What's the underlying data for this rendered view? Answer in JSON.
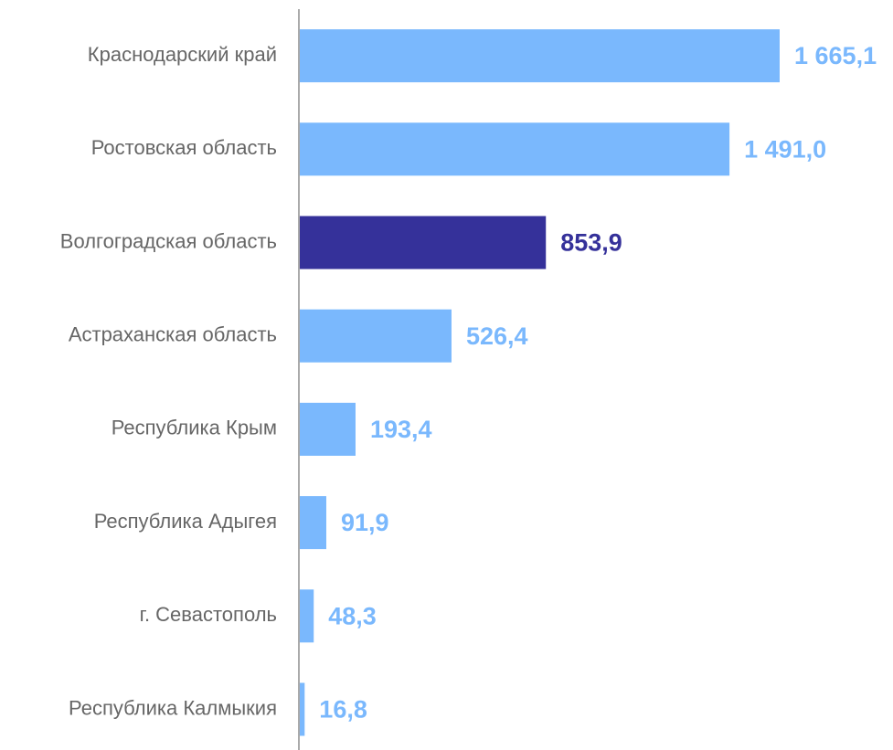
{
  "chart_data": {
    "type": "barh",
    "categories": [
      "Краснодарский край",
      "Ростовская область",
      "Волгоградская область",
      "Астраханская область",
      "Республика Крым",
      "Республика Адыгея",
      "г. Севастополь",
      "Республика Калмыкия"
    ],
    "values": [
      1665.1,
      1491.0,
      853.9,
      526.4,
      193.4,
      91.9,
      48.3,
      16.8
    ],
    "value_labels": [
      "1 665,1",
      "1 491,0",
      "853,9",
      "526,4",
      "193,4",
      "91,9",
      "48,3",
      "16,8"
    ],
    "colors": [
      "#7ab8fd",
      "#7ab8fd",
      "#35319a",
      "#7ab8fd",
      "#7ab8fd",
      "#7ab8fd",
      "#7ab8fd",
      "#7ab8fd"
    ]
  }
}
